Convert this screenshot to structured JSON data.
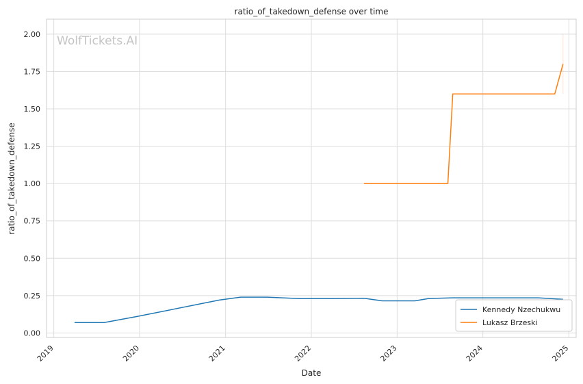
{
  "chart_data": {
    "type": "line",
    "title": "ratio_of_takedown_defense over time",
    "xlabel": "Date",
    "ylabel": "ratio_of_takedown_defense",
    "watermark": "WolfTickets.AI",
    "x_axis_type": "date",
    "xlim": [
      "2018-12-01",
      "2025-02-01"
    ],
    "ylim": [
      -0.03,
      2.1
    ],
    "x_ticks": [
      {
        "date": "2019-01-01",
        "label": "2019"
      },
      {
        "date": "2020-01-01",
        "label": "2020"
      },
      {
        "date": "2021-01-01",
        "label": "2021"
      },
      {
        "date": "2022-01-01",
        "label": "2022"
      },
      {
        "date": "2023-01-01",
        "label": "2023"
      },
      {
        "date": "2024-01-01",
        "label": "2024"
      },
      {
        "date": "2025-01-01",
        "label": "2025"
      }
    ],
    "y_ticks": [
      {
        "value": 0.0,
        "label": "0.00"
      },
      {
        "value": 0.25,
        "label": "0.25"
      },
      {
        "value": 0.5,
        "label": "0.50"
      },
      {
        "value": 0.75,
        "label": "0.75"
      },
      {
        "value": 1.0,
        "label": "1.00"
      },
      {
        "value": 1.25,
        "label": "1.25"
      },
      {
        "value": 1.5,
        "label": "1.50"
      },
      {
        "value": 1.75,
        "label": "1.75"
      },
      {
        "value": 2.0,
        "label": "2.00"
      }
    ],
    "grid": true,
    "legend_position": "bottom-right",
    "series": [
      {
        "name": "Kennedy Nzechukwu",
        "color": "#1f77b4",
        "points": [
          {
            "x": "2019-03-30",
            "y": 0.07
          },
          {
            "x": "2019-08-03",
            "y": 0.07
          },
          {
            "x": "2019-12-21",
            "y": 0.11
          },
          {
            "x": "2020-12-05",
            "y": 0.22
          },
          {
            "x": "2021-03-06",
            "y": 0.24
          },
          {
            "x": "2021-06-26",
            "y": 0.24
          },
          {
            "x": "2021-11-13",
            "y": 0.23
          },
          {
            "x": "2022-03-26",
            "y": 0.23
          },
          {
            "x": "2022-08-13",
            "y": 0.232
          },
          {
            "x": "2022-10-29",
            "y": 0.215
          },
          {
            "x": "2023-03-18",
            "y": 0.215
          },
          {
            "x": "2023-05-13",
            "y": 0.23
          },
          {
            "x": "2023-08-26",
            "y": 0.235
          },
          {
            "x": "2024-08-24",
            "y": 0.235
          },
          {
            "x": "2024-12-07",
            "y": 0.225
          }
        ]
      },
      {
        "name": "Lukasz Brzeski",
        "color": "#ff7f0e",
        "points": [
          {
            "x": "2022-08-13",
            "y": 1.0
          },
          {
            "x": "2023-08-05",
            "y": 1.0
          },
          {
            "x": "2023-08-26",
            "y": 1.6
          },
          {
            "x": "2024-11-02",
            "y": 1.6
          },
          {
            "x": "2024-12-07",
            "y": 1.8
          }
        ],
        "band": {
          "x": "2024-12-07",
          "y_low": 1.6,
          "y_high": 2.0
        }
      }
    ]
  }
}
